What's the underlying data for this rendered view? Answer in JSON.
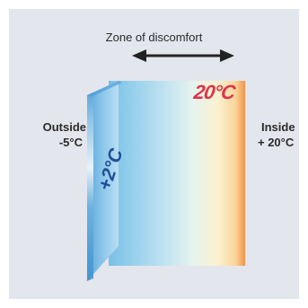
{
  "labels": {
    "zone": "Zone of discomfort",
    "outside": "Outside",
    "outside_temp": "-5°C",
    "inside": "Inside",
    "inside_temp": "+ 20°C",
    "inner_surface_temp": "20°C",
    "wall_temp": "+2°C"
  },
  "colors": {
    "background": "#e4e6ed",
    "cold": "#5aa7da",
    "warm": "#f29a52",
    "accent_red": "#e0334a",
    "arrow": "#222222"
  }
}
